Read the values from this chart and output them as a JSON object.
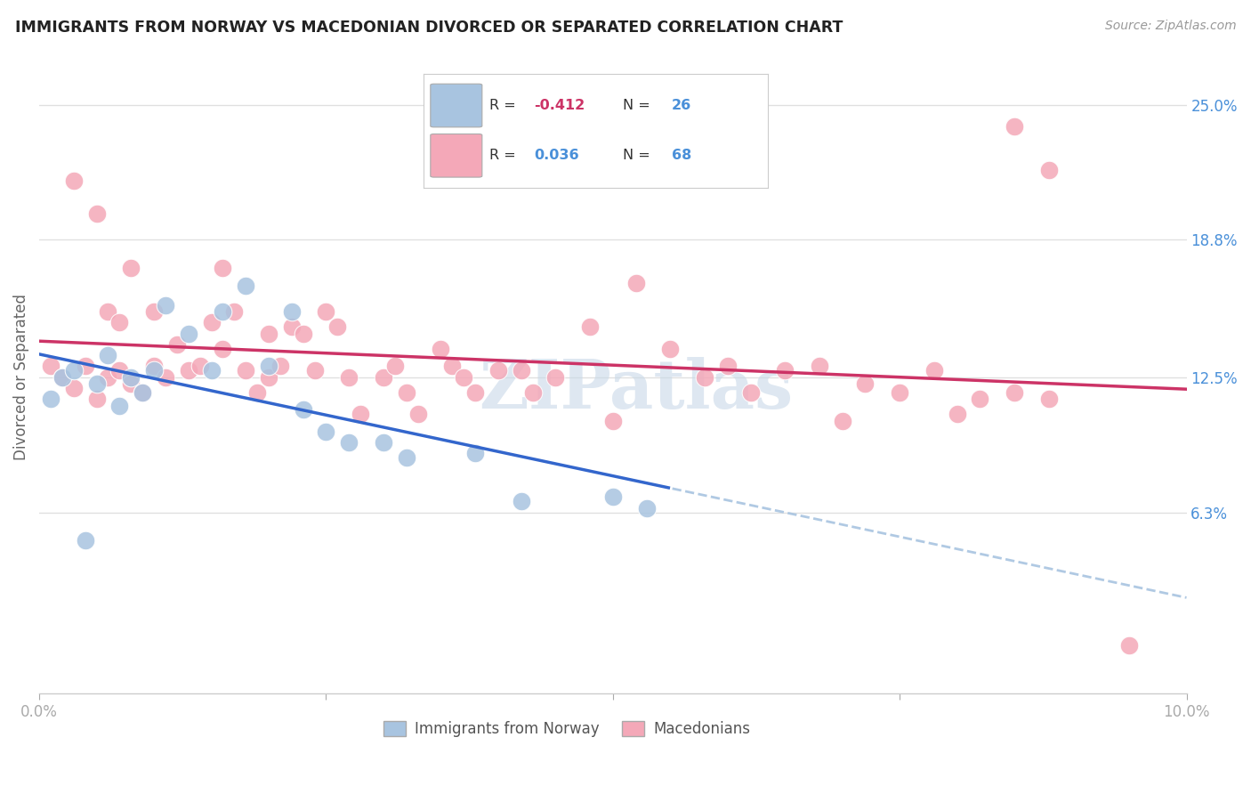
{
  "title": "IMMIGRANTS FROM NORWAY VS MACEDONIAN DIVORCED OR SEPARATED CORRELATION CHART",
  "source": "Source: ZipAtlas.com",
  "ylabel": "Divorced or Separated",
  "ytick_labels": [
    "25.0%",
    "18.8%",
    "12.5%",
    "6.3%"
  ],
  "ytick_values": [
    0.25,
    0.188,
    0.125,
    0.063
  ],
  "xlim": [
    0.0,
    0.1
  ],
  "ylim": [
    -0.02,
    0.27
  ],
  "legend_blue_r": "-0.412",
  "legend_blue_n": "26",
  "legend_pink_r": "0.036",
  "legend_pink_n": "68",
  "blue_color": "#a8c4e0",
  "pink_color": "#f4a8b8",
  "blue_line_color": "#3366cc",
  "pink_line_color": "#cc3366",
  "norway_x": [
    0.001,
    0.002,
    0.003,
    0.004,
    0.005,
    0.006,
    0.007,
    0.008,
    0.009,
    0.01,
    0.011,
    0.013,
    0.015,
    0.016,
    0.018,
    0.02,
    0.022,
    0.023,
    0.025,
    0.027,
    0.03,
    0.032,
    0.038,
    0.042,
    0.05,
    0.053
  ],
  "norway_y": [
    0.115,
    0.125,
    0.128,
    0.05,
    0.122,
    0.135,
    0.112,
    0.125,
    0.118,
    0.128,
    0.158,
    0.145,
    0.128,
    0.155,
    0.167,
    0.13,
    0.155,
    0.11,
    0.1,
    0.095,
    0.095,
    0.088,
    0.09,
    0.068,
    0.07,
    0.065
  ],
  "macedonian_x": [
    0.001,
    0.002,
    0.003,
    0.003,
    0.004,
    0.005,
    0.005,
    0.006,
    0.006,
    0.007,
    0.007,
    0.008,
    0.008,
    0.009,
    0.01,
    0.01,
    0.011,
    0.012,
    0.013,
    0.014,
    0.015,
    0.016,
    0.016,
    0.017,
    0.018,
    0.019,
    0.02,
    0.02,
    0.021,
    0.022,
    0.023,
    0.024,
    0.025,
    0.026,
    0.027,
    0.028,
    0.03,
    0.031,
    0.032,
    0.033,
    0.035,
    0.036,
    0.037,
    0.038,
    0.04,
    0.042,
    0.043,
    0.045,
    0.048,
    0.05,
    0.052,
    0.055,
    0.058,
    0.06,
    0.062,
    0.065,
    0.068,
    0.07,
    0.072,
    0.075,
    0.078,
    0.08,
    0.082,
    0.085,
    0.085,
    0.088,
    0.088,
    0.095
  ],
  "macedonian_y": [
    0.13,
    0.125,
    0.12,
    0.215,
    0.13,
    0.115,
    0.2,
    0.125,
    0.155,
    0.128,
    0.15,
    0.122,
    0.175,
    0.118,
    0.13,
    0.155,
    0.125,
    0.14,
    0.128,
    0.13,
    0.15,
    0.138,
    0.175,
    0.155,
    0.128,
    0.118,
    0.125,
    0.145,
    0.13,
    0.148,
    0.145,
    0.128,
    0.155,
    0.148,
    0.125,
    0.108,
    0.125,
    0.13,
    0.118,
    0.108,
    0.138,
    0.13,
    0.125,
    0.118,
    0.128,
    0.128,
    0.118,
    0.125,
    0.148,
    0.105,
    0.168,
    0.138,
    0.125,
    0.13,
    0.118,
    0.128,
    0.13,
    0.105,
    0.122,
    0.118,
    0.128,
    0.108,
    0.115,
    0.118,
    0.24,
    0.115,
    0.22,
    0.002
  ],
  "background_color": "#ffffff",
  "grid_color": "#dddddd",
  "watermark": "ZIPatlas",
  "watermark_color": "#c8d8e8"
}
